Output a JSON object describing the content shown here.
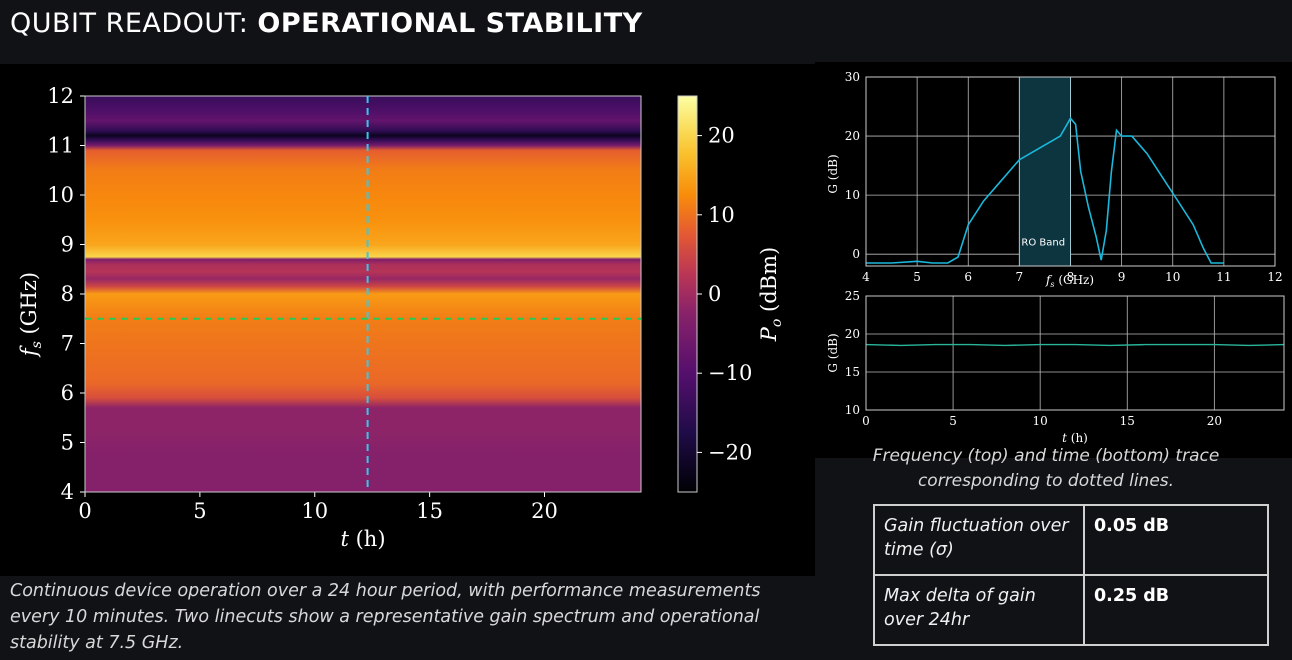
{
  "header": {
    "title_light": "QUBIT READOUT: ",
    "title_bold": "OPERATIONAL STABILITY"
  },
  "colors": {
    "dashed_vertical": "#33c8ee",
    "dashed_horizontal": "#22cc55",
    "trace": "#1ab8dc",
    "time_trace": "#2ab59a"
  },
  "chart_data": [
    {
      "type": "heatmap",
      "title": "",
      "xlabel": "t (h)",
      "ylabel": "f_s (GHz)",
      "xlim": [
        0,
        24.2
      ],
      "ylim": [
        4,
        12
      ],
      "x_ticks": [
        "0",
        "5",
        "10",
        "15",
        "20"
      ],
      "y_ticks": [
        "4",
        "5",
        "6",
        "7",
        "8",
        "9",
        "10",
        "11",
        "12"
      ],
      "colorbar": {
        "label": "P_o (dBm)",
        "range": [
          -25,
          25
        ],
        "ticks": [
          "20",
          "10",
          "0",
          "−10",
          "−20"
        ]
      },
      "cut_time_h": 12.3,
      "cut_freq_ghz": 7.5,
      "power_profile": [
        [
          4.0,
          -3
        ],
        [
          4.8,
          -3
        ],
        [
          5.2,
          -2
        ],
        [
          5.7,
          -2
        ],
        [
          5.9,
          6
        ],
        [
          6.2,
          9
        ],
        [
          6.8,
          10
        ],
        [
          7.5,
          11
        ],
        [
          8.0,
          14
        ],
        [
          8.15,
          5
        ],
        [
          8.3,
          -1
        ],
        [
          8.45,
          2
        ],
        [
          8.6,
          1
        ],
        [
          8.7,
          -4
        ],
        [
          8.75,
          20
        ],
        [
          9.0,
          15
        ],
        [
          9.5,
          13
        ],
        [
          10.0,
          12
        ],
        [
          10.5,
          11
        ],
        [
          10.9,
          8
        ],
        [
          11.0,
          -5
        ],
        [
          11.1,
          -14
        ],
        [
          11.2,
          -22
        ],
        [
          11.3,
          -15
        ],
        [
          11.5,
          -8
        ],
        [
          11.7,
          -11
        ],
        [
          11.9,
          -13
        ],
        [
          12.0,
          -14
        ]
      ]
    },
    {
      "type": "line",
      "title": "",
      "xlabel": "f_s (GHz)",
      "ylabel": "G (dB)",
      "xlim": [
        4,
        12
      ],
      "ylim": [
        -2,
        30
      ],
      "x_ticks": [
        "4",
        "5",
        "6",
        "7",
        "8",
        "9",
        "10",
        "11",
        "12"
      ],
      "y_ticks": [
        "0",
        "10",
        "20",
        "30"
      ],
      "annotation": "RO Band",
      "band_ghz": [
        7.0,
        8.0
      ],
      "x": [
        4.0,
        4.5,
        5.0,
        5.3,
        5.6,
        5.8,
        6.0,
        6.3,
        6.6,
        7.0,
        7.4,
        7.8,
        8.0,
        8.1,
        8.2,
        8.35,
        8.5,
        8.6,
        8.7,
        8.8,
        8.9,
        9.0,
        9.2,
        9.5,
        9.8,
        10.1,
        10.4,
        10.6,
        10.75,
        11.0
      ],
      "y": [
        -1.5,
        -1.5,
        -1.2,
        -1.5,
        -1.5,
        -0.5,
        5,
        9,
        12,
        16,
        18,
        20,
        23,
        22,
        14,
        8,
        3,
        -1,
        4,
        14,
        21,
        20,
        20,
        17,
        13,
        9,
        5,
        1,
        -1.5,
        -1.5
      ]
    },
    {
      "type": "line",
      "title": "",
      "xlabel": "t (h)",
      "ylabel": "G (dB)",
      "xlim": [
        0,
        24
      ],
      "ylim": [
        10,
        25
      ],
      "x_ticks": [
        "0",
        "5",
        "10",
        "15",
        "20"
      ],
      "y_ticks": [
        "10",
        "15",
        "20",
        "25"
      ],
      "x": [
        0,
        2,
        4,
        6,
        8,
        10,
        12,
        14,
        16,
        18,
        20,
        22,
        24
      ],
      "y": [
        18.6,
        18.5,
        18.6,
        18.6,
        18.5,
        18.6,
        18.6,
        18.5,
        18.6,
        18.6,
        18.6,
        18.5,
        18.6
      ]
    }
  ],
  "captions": {
    "left": "Continuous device operation over a 24 hour period, with performance measurements every 10 minutes. Two linecuts show a representative gain spectrum and operational stability at 7.5 GHz.",
    "right": "Frequency (top) and time (bottom) trace corresponding to dotted lines."
  },
  "stats": [
    {
      "label": "Gain fluctuation over time (σ)",
      "value": "0.05 dB"
    },
    {
      "label": "Max delta of gain over 24hr",
      "value": "0.25 dB"
    }
  ]
}
